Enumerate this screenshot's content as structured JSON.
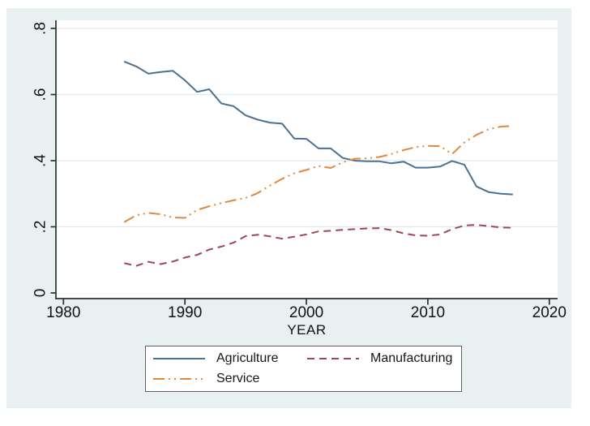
{
  "colors": {
    "canvas_bg": "#e9f0f2",
    "plot_bg": "#ffffff",
    "gridline": "#dde9ec",
    "axis": "#2e2e2e",
    "tick_text": "#121212"
  },
  "chart_data": {
    "type": "line",
    "title": "",
    "xlabel": "YEAR",
    "ylabel": "",
    "x_range": [
      1980,
      2020
    ],
    "y_range": [
      0,
      0.8
    ],
    "grid": "horizontal",
    "legend_position": "bottom",
    "x_ticks": {
      "values": [
        1980,
        1990,
        2000,
        2010,
        2020
      ],
      "labels": [
        "1980",
        "1990",
        "2000",
        "2010",
        "2020"
      ]
    },
    "y_ticks": {
      "values": [
        0,
        0.2,
        0.4,
        0.6,
        0.8
      ],
      "labels": [
        "0",
        ".2",
        ".4",
        ".6",
        ".8"
      ]
    },
    "x": [
      1985,
      1986,
      1987,
      1988,
      1989,
      1990,
      1991,
      1992,
      1993,
      1994,
      1995,
      1996,
      1997,
      1998,
      1999,
      2000,
      2001,
      2002,
      2003,
      2004,
      2005,
      2006,
      2007,
      2008,
      2009,
      2010,
      2011,
      2012,
      2013,
      2014,
      2015,
      2016,
      2017
    ],
    "series": [
      {
        "name": "Agriculture",
        "color": "#4a7191",
        "dash": "solid",
        "values": [
          0.7,
          0.685,
          0.663,
          0.668,
          0.672,
          0.643,
          0.608,
          0.616,
          0.573,
          0.565,
          0.537,
          0.524,
          0.515,
          0.512,
          0.467,
          0.466,
          0.437,
          0.437,
          0.408,
          0.4,
          0.398,
          0.398,
          0.392,
          0.397,
          0.379,
          0.379,
          0.382,
          0.399,
          0.388,
          0.322,
          0.305,
          0.3,
          0.298
        ]
      },
      {
        "name": "Manufacturing",
        "color": "#9c4852",
        "dash": "dashed",
        "values": [
          0.09,
          0.082,
          0.094,
          0.087,
          0.095,
          0.107,
          0.115,
          0.131,
          0.14,
          0.152,
          0.172,
          0.176,
          0.171,
          0.164,
          0.17,
          0.177,
          0.186,
          0.188,
          0.191,
          0.193,
          0.195,
          0.196,
          0.19,
          0.18,
          0.174,
          0.173,
          0.177,
          0.193,
          0.204,
          0.206,
          0.202,
          0.198,
          0.197
        ]
      },
      {
        "name": "Service",
        "color": "#e0883c",
        "dash": "dash-dot-dot",
        "values": [
          0.214,
          0.235,
          0.242,
          0.238,
          0.228,
          0.227,
          0.251,
          0.262,
          0.272,
          0.28,
          0.287,
          0.302,
          0.325,
          0.345,
          0.362,
          0.372,
          0.384,
          0.378,
          0.395,
          0.406,
          0.407,
          0.411,
          0.42,
          0.432,
          0.441,
          0.445,
          0.444,
          0.42,
          0.455,
          0.478,
          0.495,
          0.503,
          0.505
        ]
      }
    ]
  }
}
